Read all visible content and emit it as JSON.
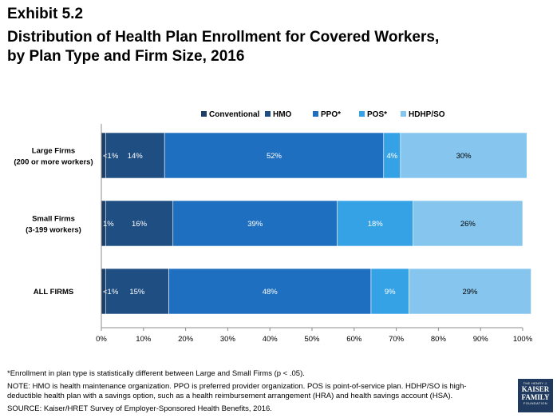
{
  "header": {
    "exhibit": "Exhibit 5.2",
    "title_line1": "Distribution of Health Plan Enrollment for Covered Workers,",
    "title_line2": "by Plan Type and Firm Size, 2016"
  },
  "chart_data": {
    "type": "bar",
    "orientation": "horizontal",
    "stacked": true,
    "categories": [
      [
        "Large Firms",
        "(200 or more workers)"
      ],
      [
        "Small Firms",
        "(3-199 workers)"
      ],
      [
        "ALL FIRMS"
      ]
    ],
    "series": [
      {
        "name": "Conventional",
        "color": "#1b3f66",
        "values": [
          1,
          1,
          1
        ],
        "labels": [
          "<1%",
          "1%",
          "<1%"
        ]
      },
      {
        "name": "HMO",
        "color": "#1f4e82",
        "values": [
          14,
          16,
          15
        ],
        "labels": [
          "14%",
          "16%",
          "15%"
        ]
      },
      {
        "name": "PPO*",
        "color": "#1f6fc0",
        "values": [
          52,
          39,
          48
        ],
        "labels": [
          "52%",
          "39%",
          "48%"
        ]
      },
      {
        "name": "POS*",
        "color": "#36a2e6",
        "values": [
          4,
          18,
          9
        ],
        "labels": [
          "4%",
          "18%",
          "9%"
        ]
      },
      {
        "name": "HDHP/SO",
        "color": "#86c6ee",
        "values": [
          30,
          26,
          29
        ],
        "labels": [
          "30%",
          "26%",
          "29%"
        ]
      }
    ],
    "xlim": [
      0,
      100
    ],
    "x_ticks": [
      "0%",
      "10%",
      "20%",
      "30%",
      "40%",
      "50%",
      "60%",
      "70%",
      "80%",
      "90%",
      "100%"
    ],
    "grid": false,
    "legend_position": "top"
  },
  "footer": {
    "note1": "*Enrollment in plan type is statistically different between Large and Small Firms (p < .05).",
    "note2": "NOTE:  HMO is health maintenance organization. PPO is preferred provider organization. POS is point-of-service plan. HDHP/SO is high-deductible health plan with a savings option, such as a health reimbursement arrangement (HRA) and health savings account (HSA).",
    "source": "SOURCE:  Kaiser/HRET Survey of Employer-Sponsored Health Benefits, 2016."
  },
  "logo": {
    "line1": "THE HENRY J.",
    "line2": "KAISER",
    "line3": "FAMILY",
    "line4": "FOUNDATION"
  }
}
